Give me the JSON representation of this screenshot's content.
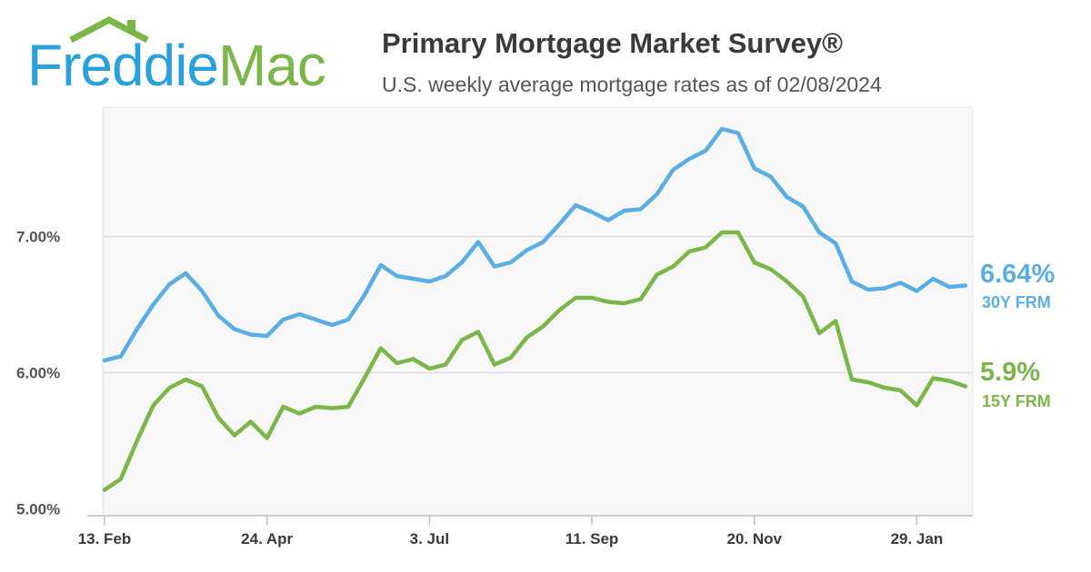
{
  "brand": {
    "logo_word1": "Freddie",
    "logo_word2": "Mac",
    "blue": "#2aa0dc",
    "green": "#7ab648"
  },
  "header": {
    "title": "Primary Mortgage Market Survey®",
    "subtitle": "U.S. weekly average mortgage rates as of 02/08/2024"
  },
  "chart_data": {
    "type": "line",
    "ylim": [
      4.95,
      7.95
    ],
    "yticks": [
      5.0,
      6.0,
      7.0
    ],
    "ytick_labels": [
      "5.00%",
      "6.00%",
      "7.00%"
    ],
    "xtick_labels": [
      "13. Feb",
      "24. Apr",
      "3. Jul",
      "11. Sep",
      "20. Nov",
      "29. Jan"
    ],
    "xtick_weeks": [
      0,
      10,
      20,
      30,
      40,
      50
    ],
    "grid": true,
    "series": [
      {
        "name": "30Y FRM",
        "end_value_label": "6.64%",
        "color": "#5aaee3",
        "values": [
          6.09,
          6.12,
          6.32,
          6.5,
          6.65,
          6.73,
          6.6,
          6.42,
          6.32,
          6.28,
          6.27,
          6.39,
          6.43,
          6.39,
          6.35,
          6.39,
          6.57,
          6.79,
          6.71,
          6.69,
          6.67,
          6.71,
          6.81,
          6.96,
          6.78,
          6.81,
          6.9,
          6.96,
          7.09,
          7.23,
          7.18,
          7.12,
          7.19,
          7.2,
          7.31,
          7.49,
          7.57,
          7.63,
          7.79,
          7.76,
          7.5,
          7.44,
          7.29,
          7.22,
          7.03,
          6.95,
          6.67,
          6.61,
          6.62,
          6.66,
          6.6,
          6.69,
          6.63,
          6.64
        ]
      },
      {
        "name": "15Y FRM",
        "end_value_label": "5.9%",
        "color": "#7ab648",
        "values": [
          5.14,
          5.22,
          5.5,
          5.76,
          5.89,
          5.95,
          5.9,
          5.67,
          5.54,
          5.64,
          5.52,
          5.75,
          5.7,
          5.75,
          5.74,
          5.75,
          5.96,
          6.18,
          6.07,
          6.1,
          6.03,
          6.06,
          6.24,
          6.3,
          6.06,
          6.11,
          6.26,
          6.34,
          6.46,
          6.55,
          6.55,
          6.52,
          6.51,
          6.54,
          6.72,
          6.78,
          6.89,
          6.92,
          7.03,
          7.03,
          6.81,
          6.76,
          6.67,
          6.56,
          6.29,
          6.38,
          5.95,
          5.93,
          5.89,
          5.87,
          5.76,
          5.96,
          5.94,
          5.9
        ]
      }
    ]
  }
}
